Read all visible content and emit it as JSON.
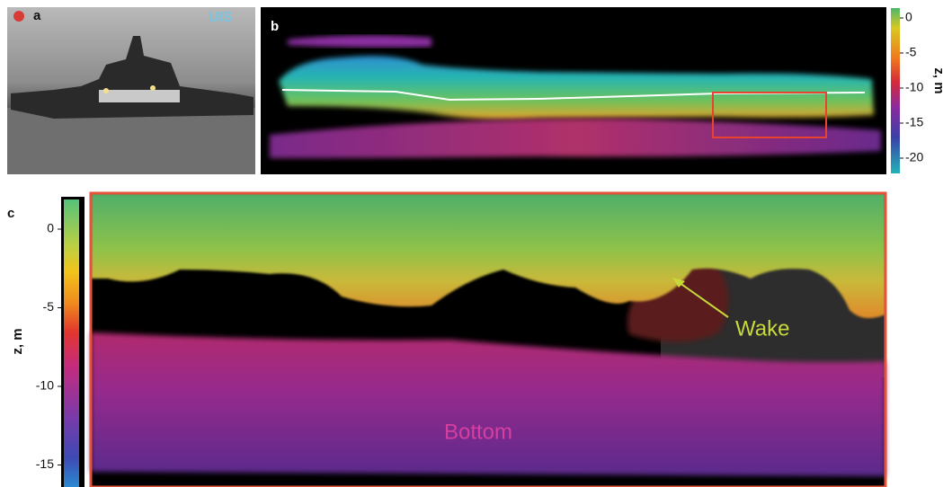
{
  "panels": {
    "a": {
      "label": "a",
      "logo": "UIS"
    },
    "b": {
      "label": "b",
      "colorbar": {
        "label": "z, m",
        "ticks": [
          0,
          -5,
          -10,
          -15,
          -20
        ]
      }
    },
    "c": {
      "label": "c",
      "colorbar": {
        "label": "z, m",
        "ticks": [
          0,
          -5,
          -10,
          -15
        ]
      },
      "annotations": {
        "wake": "Wake",
        "bottom": "Bottom"
      }
    }
  }
}
